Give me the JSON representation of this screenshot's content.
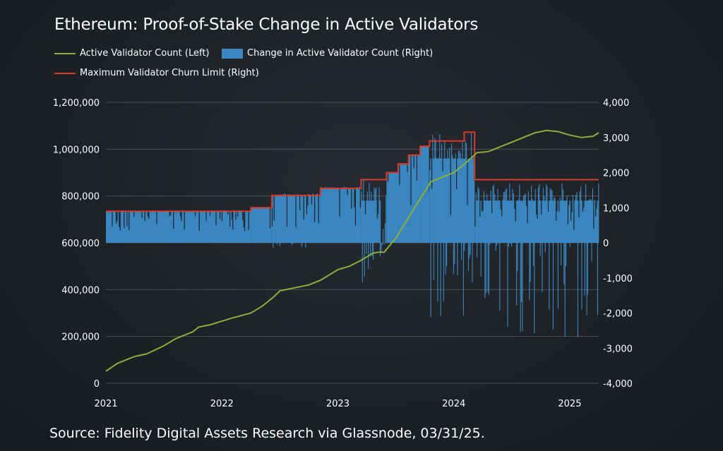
{
  "chart_data": {
    "type": "line+bar",
    "title": "Ethereum: Proof-of-Stake Change in Active Validators",
    "source": "Source: Fidelity Digital Assets Research via Glassnode, 03/31/25.",
    "x_ticks": [
      "2021",
      "2022",
      "2023",
      "2024",
      "2025"
    ],
    "x_range": [
      2021.0,
      2025.25
    ],
    "left_axis": {
      "ticks": [
        "0",
        "200,000",
        "400,000",
        "600,000",
        "800,000",
        "1,000,000",
        "1,200,000"
      ],
      "range": [
        0,
        1200000
      ]
    },
    "right_axis": {
      "ticks": [
        "-4,000",
        "-3,000",
        "-2,000",
        "-1,000",
        "0",
        "1,000",
        "2,000",
        "3,000",
        "4,000"
      ],
      "range": [
        -4000,
        4000
      ]
    },
    "grid": "horizontal",
    "legend": [
      {
        "label": "Active Validator Count (Left)",
        "color": "#8fad3a",
        "kind": "line"
      },
      {
        "label": "Change in Active Validator Count (Right)",
        "color": "#3a87c0",
        "kind": "bar"
      },
      {
        "label": "Maximum Validator Churn Limit  (Right)",
        "color": "#d63b2a",
        "kind": "line"
      }
    ],
    "series": [
      {
        "name": "Active Validator Count (Left)",
        "axis": "left",
        "points": [
          [
            2021.0,
            52000
          ],
          [
            2021.1,
            85000
          ],
          [
            2021.25,
            115000
          ],
          [
            2021.35,
            125000
          ],
          [
            2021.5,
            160000
          ],
          [
            2021.6,
            190000
          ],
          [
            2021.75,
            220000
          ],
          [
            2021.8,
            240000
          ],
          [
            2021.9,
            250000
          ],
          [
            2022.0,
            265000
          ],
          [
            2022.1,
            280000
          ],
          [
            2022.25,
            300000
          ],
          [
            2022.35,
            330000
          ],
          [
            2022.45,
            370000
          ],
          [
            2022.5,
            395000
          ],
          [
            2022.6,
            405000
          ],
          [
            2022.75,
            420000
          ],
          [
            2022.85,
            440000
          ],
          [
            2022.95,
            470000
          ],
          [
            2023.0,
            485000
          ],
          [
            2023.1,
            500000
          ],
          [
            2023.2,
            525000
          ],
          [
            2023.3,
            555000
          ],
          [
            2023.35,
            560000
          ],
          [
            2023.4,
            560000
          ],
          [
            2023.5,
            620000
          ],
          [
            2023.6,
            700000
          ],
          [
            2023.7,
            780000
          ],
          [
            2023.8,
            860000
          ],
          [
            2023.9,
            880000
          ],
          [
            2024.0,
            900000
          ],
          [
            2024.1,
            940000
          ],
          [
            2024.2,
            985000
          ],
          [
            2024.3,
            990000
          ],
          [
            2024.4,
            1010000
          ],
          [
            2024.5,
            1030000
          ],
          [
            2024.6,
            1050000
          ],
          [
            2024.7,
            1070000
          ],
          [
            2024.8,
            1080000
          ],
          [
            2024.9,
            1075000
          ],
          [
            2025.0,
            1060000
          ],
          [
            2025.1,
            1050000
          ],
          [
            2025.2,
            1055000
          ],
          [
            2025.25,
            1070000
          ]
        ]
      },
      {
        "name": "Maximum Validator Churn Limit  (Right)",
        "axis": "right",
        "steps": [
          [
            2021.0,
            900
          ],
          [
            2022.25,
            1000
          ],
          [
            2022.43,
            1350
          ],
          [
            2022.85,
            1550
          ],
          [
            2023.2,
            1800
          ],
          [
            2023.42,
            2000
          ],
          [
            2023.52,
            2250
          ],
          [
            2023.61,
            2500
          ],
          [
            2023.71,
            2750
          ],
          [
            2023.79,
            2900
          ],
          [
            2024.09,
            3150
          ],
          [
            2024.18,
            1800
          ],
          [
            2025.25,
            1800
          ]
        ]
      },
      {
        "name": "Change in Active Validator Count (Right)",
        "axis": "right",
        "segments": [
          {
            "x0": 2021.0,
            "x1": 2022.25,
            "base": 900,
            "min": 0,
            "max": 900
          },
          {
            "x0": 2022.25,
            "x1": 2022.43,
            "base": 1000,
            "min": 0,
            "max": 1000
          },
          {
            "x0": 2022.43,
            "x1": 2022.85,
            "base": 1350,
            "min": -150,
            "max": 1400
          },
          {
            "x0": 2022.85,
            "x1": 2023.2,
            "base": 1550,
            "min": 0,
            "max": 1600
          },
          {
            "x0": 2023.2,
            "x1": 2023.37,
            "base": 1200,
            "min": -1300,
            "max": 1800
          },
          {
            "x0": 2023.37,
            "x1": 2023.42,
            "base": 0,
            "min": -300,
            "max": 1800
          },
          {
            "x0": 2023.42,
            "x1": 2023.52,
            "base": 2000,
            "min": 0,
            "max": 2000
          },
          {
            "x0": 2023.52,
            "x1": 2023.61,
            "base": 2250,
            "min": 0,
            "max": 2250
          },
          {
            "x0": 2023.61,
            "x1": 2023.71,
            "base": 2500,
            "min": 0,
            "max": 2500
          },
          {
            "x0": 2023.71,
            "x1": 2023.79,
            "base": 2750,
            "min": 0,
            "max": 2750
          },
          {
            "x0": 2023.79,
            "x1": 2024.18,
            "base": 2400,
            "min": -2200,
            "max": 3150
          },
          {
            "x0": 2024.18,
            "x1": 2025.25,
            "base": 1200,
            "min": -2800,
            "max": 1700
          }
        ]
      }
    ]
  }
}
